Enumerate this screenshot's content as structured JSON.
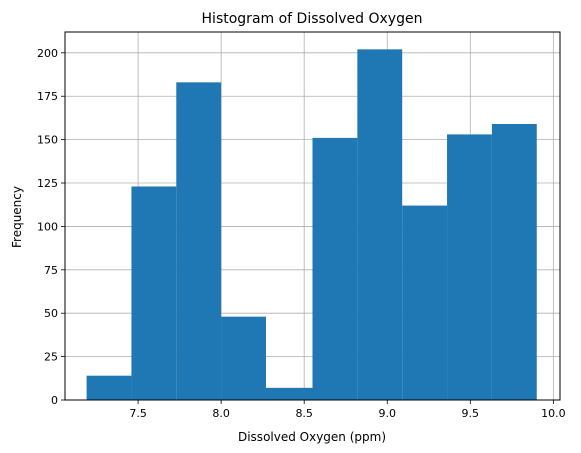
{
  "chart_data": {
    "type": "bar",
    "title": "Histogram of Dissolved Oxygen",
    "xlabel": "Dissolved Oxygen (ppm)",
    "ylabel": "Frequency",
    "xlim": [
      7.06,
      10.04
    ],
    "ylim": [
      0,
      212
    ],
    "xticks": [
      7.5,
      8.0,
      8.5,
      9.0,
      9.5,
      10.0
    ],
    "xtick_labels": [
      "7.5",
      "8.0",
      "8.5",
      "9.0",
      "9.5",
      "10.0"
    ],
    "yticks": [
      0,
      25,
      50,
      75,
      100,
      125,
      150,
      175,
      200
    ],
    "ytick_labels": [
      "0",
      "25",
      "50",
      "75",
      "100",
      "125",
      "150",
      "175",
      "200"
    ],
    "grid": true,
    "bin_edges": [
      7.19,
      7.46,
      7.73,
      8.0,
      8.27,
      8.55,
      8.82,
      9.09,
      9.36,
      9.63,
      9.9
    ],
    "values": [
      14,
      123,
      183,
      48,
      7,
      151,
      202,
      112,
      153,
      159
    ],
    "colors": {
      "bar": "#1f77b4",
      "grid": "#b0b0b0",
      "axis": "#000000"
    }
  }
}
